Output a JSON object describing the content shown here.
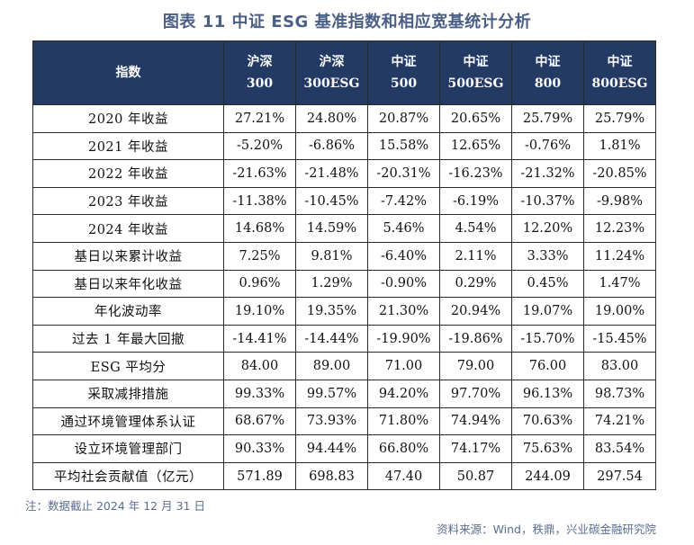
{
  "title": "图表 11 中证 ESG 基准指数和相应宽基统计分析",
  "header": {
    "row_label": "指数",
    "columns": [
      {
        "line1": "沪深",
        "line2": "300"
      },
      {
        "line1": "沪深",
        "line2": "300ESG"
      },
      {
        "line1": "中证",
        "line2": "500"
      },
      {
        "line1": "中证",
        "line2": "500ESG"
      },
      {
        "line1": "中证",
        "line2": "800"
      },
      {
        "line1": "中证",
        "line2": "800ESG"
      }
    ]
  },
  "rows": [
    {
      "label": "2020 年收益",
      "cells": [
        "27.21%",
        "24.80%",
        "20.87%",
        "20.65%",
        "25.79%",
        "25.79%"
      ]
    },
    {
      "label": "2021 年收益",
      "cells": [
        "-5.20%",
        "-6.86%",
        "15.58%",
        "12.65%",
        "-0.76%",
        "1.81%"
      ]
    },
    {
      "label": "2022 年收益",
      "cells": [
        "-21.63%",
        "-21.48%",
        "-20.31%",
        "-16.23%",
        "-21.32%",
        "-20.85%"
      ]
    },
    {
      "label": "2023 年收益",
      "cells": [
        "-11.38%",
        "-10.45%",
        "-7.42%",
        "-6.19%",
        "-10.37%",
        "-9.98%"
      ]
    },
    {
      "label": "2024 年收益",
      "cells": [
        "14.68%",
        "14.59%",
        "5.46%",
        "4.54%",
        "12.20%",
        "12.23%"
      ]
    },
    {
      "label": "基日以来累计收益",
      "cells": [
        "7.25%",
        "9.81%",
        "-6.40%",
        "2.11%",
        "3.33%",
        "11.24%"
      ]
    },
    {
      "label": "基日以来年化收益",
      "cells": [
        "0.96%",
        "1.29%",
        "-0.90%",
        "0.29%",
        "0.45%",
        "1.47%"
      ]
    },
    {
      "label": "年化波动率",
      "cells": [
        "19.10%",
        "19.35%",
        "21.30%",
        "20.94%",
        "19.07%",
        "19.00%"
      ]
    },
    {
      "label": "过去 1 年最大回撤",
      "cells": [
        "-14.41%",
        "-14.44%",
        "-19.90%",
        "-19.86%",
        "-15.70%",
        "-15.45%"
      ]
    },
    {
      "label": "ESG 平均分",
      "cells": [
        "84.00",
        "89.00",
        "71.00",
        "79.00",
        "76.00",
        "83.00"
      ]
    },
    {
      "label": "采取减排措施",
      "cells": [
        "99.33%",
        "99.57%",
        "94.20%",
        "97.70%",
        "96.13%",
        "98.73%"
      ]
    },
    {
      "label": "通过环境管理体系认证",
      "cells": [
        "68.67%",
        "73.93%",
        "71.80%",
        "74.94%",
        "70.63%",
        "74.21%"
      ]
    },
    {
      "label": "设立环境管理部门",
      "cells": [
        "90.33%",
        "94.44%",
        "66.80%",
        "74.17%",
        "75.63%",
        "83.54%"
      ]
    },
    {
      "label": "平均社会贡献值（亿元）",
      "cells": [
        "571.89",
        "698.83",
        "47.40",
        "50.87",
        "244.09",
        "297.54"
      ]
    }
  ],
  "note": "注：数据截止 2024 年 12 月 31 日",
  "source": "资料来源：Wind，秩鼎，兴业碳金融研究院",
  "colors": {
    "header_bg": "#233b64",
    "title": "#4a5f86",
    "note": "#5a6d92"
  }
}
